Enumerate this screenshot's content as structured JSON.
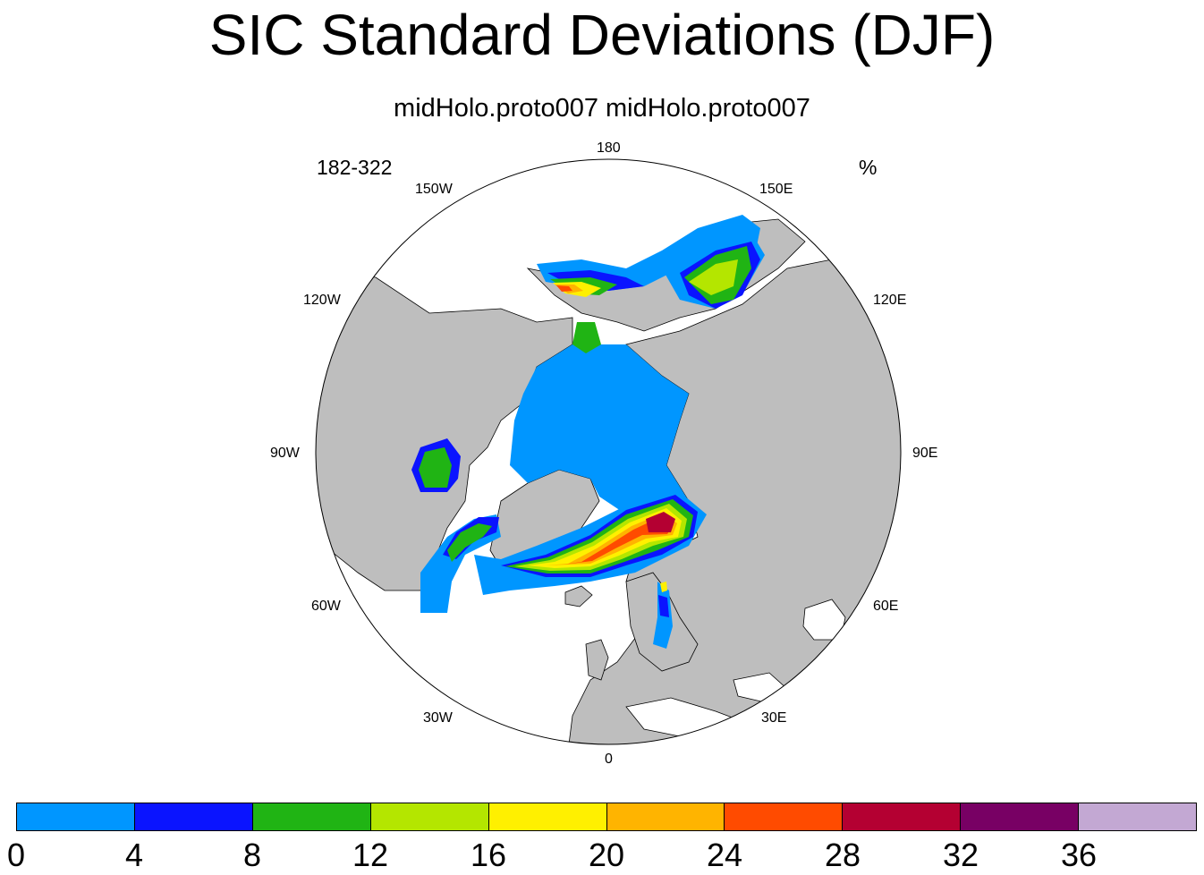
{
  "title": "SIC Standard Deviations (DJF)",
  "subtitle": "midHolo.proto007  midHolo.proto007",
  "corner_left": "182-322",
  "corner_right": "%",
  "longitude_labels": {
    "lon_180": "180",
    "lon_150e": "150E",
    "lon_120e": "120E",
    "lon_90e": "90E",
    "lon_60e": "60E",
    "lon_30e": "30E",
    "lon_0": "0",
    "lon_30w": "30W",
    "lon_60w": "60W",
    "lon_90w": "90W",
    "lon_120w": "120W",
    "lon_150w": "150W"
  },
  "colors": {
    "land": "#bebebe",
    "ocean": "#ffffff",
    "c0_4": "#0096ff",
    "c4_8": "#0a14ff",
    "c8_12": "#20b414",
    "c12_16": "#b4e600",
    "c16_20": "#fff000",
    "c20_24": "#ffb400",
    "c24_28": "#ff4b00",
    "c28_32": "#b40032",
    "c32_36": "#780064",
    "c36_plus": "#c3a8d3"
  },
  "colorbar": {
    "boxes": [
      "#0096ff",
      "#0a14ff",
      "#20b414",
      "#b4e600",
      "#fff000",
      "#ffb400",
      "#ff4b00",
      "#b40032",
      "#780064",
      "#c3a8d3"
    ],
    "ticks": [
      "0",
      "4",
      "8",
      "12",
      "16",
      "20",
      "24",
      "28",
      "32",
      "36"
    ]
  }
}
